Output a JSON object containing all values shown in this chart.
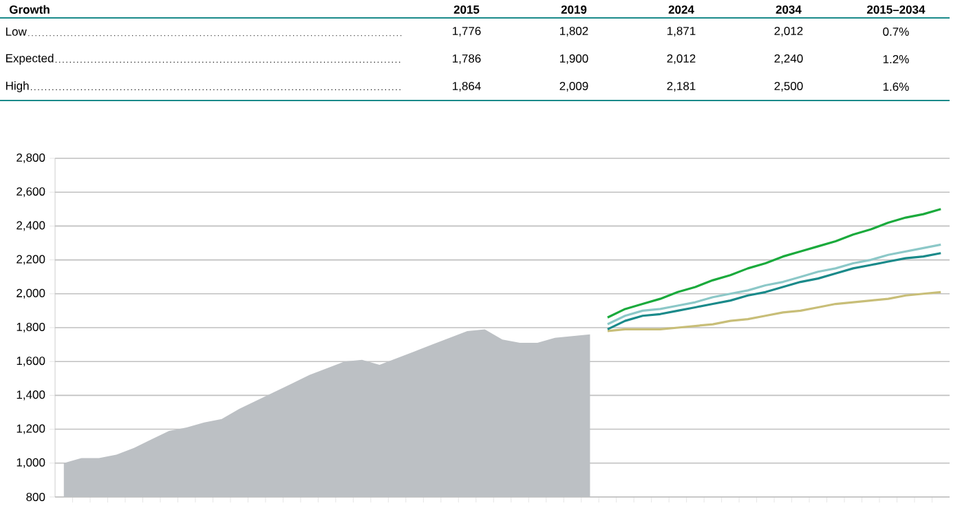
{
  "chart_data": [
    {
      "type": "other",
      "ylabel": "Growth",
      "categories": [
        "2015",
        "2019",
        "2024",
        "2034",
        "2015–2034"
      ],
      "series": [
        {
          "name": "Low",
          "values": [
            1776,
            1802,
            1871,
            2012,
            0.7
          ],
          "value_labels": [
            "1,776",
            "1,802",
            "1,871",
            "2,012",
            "0.7%"
          ]
        },
        {
          "name": "Expected",
          "values": [
            1786,
            1900,
            2012,
            2240,
            1.2
          ],
          "value_labels": [
            "1,786",
            "1,900",
            "2,012",
            "2,240",
            "1.2%"
          ]
        },
        {
          "name": "High",
          "values": [
            1864,
            2009,
            2181,
            2500,
            1.6
          ],
          "value_labels": [
            "1,864",
            "2,009",
            "2,181",
            "2,500",
            "1.6%"
          ]
        }
      ]
    },
    {
      "type": "line",
      "categories": [
        null,
        null,
        null,
        null,
        null,
        null,
        null,
        null,
        null,
        null,
        null,
        null,
        null,
        null,
        null,
        null,
        null,
        null,
        null,
        null,
        null,
        null,
        null,
        null,
        null,
        null,
        null,
        null,
        null,
        null,
        null,
        null,
        null,
        null,
        null,
        null,
        null,
        null,
        null,
        null,
        null,
        null,
        null,
        null,
        null,
        null,
        null,
        null,
        null,
        null,
        null
      ],
      "series": [
        {
          "type": "area",
          "color": "#bcc0c4",
          "values": [
            1000,
            1030,
            1030,
            1050,
            1090,
            1140,
            1190,
            1210,
            1240,
            1260,
            1320,
            1370,
            1420,
            1470,
            1520,
            1560,
            1600,
            1610,
            1580,
            1620,
            1660,
            1700,
            1740,
            1780,
            1790,
            1730,
            1710,
            1710,
            1740,
            1750,
            1760,
            null,
            null,
            null,
            null,
            null,
            null,
            null,
            null,
            null,
            null,
            null,
            null,
            null,
            null,
            null,
            null,
            null,
            null,
            null,
            null
          ]
        },
        {
          "color": "#c8be78",
          "values": [
            null,
            null,
            null,
            null,
            null,
            null,
            null,
            null,
            null,
            null,
            null,
            null,
            null,
            null,
            null,
            null,
            null,
            null,
            null,
            null,
            null,
            null,
            null,
            null,
            null,
            null,
            null,
            null,
            null,
            null,
            null,
            1780,
            1790,
            1790,
            1790,
            1800,
            1810,
            1820,
            1840,
            1850,
            1870,
            1890,
            1900,
            1920,
            1940,
            1950,
            1960,
            1970,
            1990,
            2000,
            2010
          ]
        },
        {
          "color": "#8cc8c8",
          "values": [
            null,
            null,
            null,
            null,
            null,
            null,
            null,
            null,
            null,
            null,
            null,
            null,
            null,
            null,
            null,
            null,
            null,
            null,
            null,
            null,
            null,
            null,
            null,
            null,
            null,
            null,
            null,
            null,
            null,
            null,
            null,
            1820,
            1870,
            1900,
            1910,
            1930,
            1950,
            1980,
            2000,
            2020,
            2050,
            2070,
            2100,
            2130,
            2150,
            2180,
            2200,
            2230,
            2250,
            2270,
            2290
          ]
        },
        {
          "color": "#1a8a8a",
          "values": [
            null,
            null,
            null,
            null,
            null,
            null,
            null,
            null,
            null,
            null,
            null,
            null,
            null,
            null,
            null,
            null,
            null,
            null,
            null,
            null,
            null,
            null,
            null,
            null,
            null,
            null,
            null,
            null,
            null,
            null,
            null,
            1790,
            1840,
            1870,
            1880,
            1900,
            1920,
            1940,
            1960,
            1990,
            2010,
            2040,
            2070,
            2090,
            2120,
            2150,
            2170,
            2190,
            2210,
            2220,
            2240
          ]
        },
        {
          "color": "#1aaa3c",
          "values": [
            null,
            null,
            null,
            null,
            null,
            null,
            null,
            null,
            null,
            null,
            null,
            null,
            null,
            null,
            null,
            null,
            null,
            null,
            null,
            null,
            null,
            null,
            null,
            null,
            null,
            null,
            null,
            null,
            null,
            null,
            null,
            1860,
            1910,
            1940,
            1970,
            2010,
            2040,
            2080,
            2110,
            2150,
            2180,
            2220,
            2250,
            2280,
            2310,
            2350,
            2380,
            2420,
            2450,
            2470,
            2500
          ]
        }
      ],
      "ylim": [
        800,
        2800
      ],
      "yticks": [
        {
          "value": 800,
          "label": "800"
        },
        {
          "value": 1000,
          "label": "1,000"
        },
        {
          "value": 1200,
          "label": "1,200"
        },
        {
          "value": 1400,
          "label": "1,400"
        },
        {
          "value": 1600,
          "label": "1,600"
        },
        {
          "value": 1800,
          "label": "1,800"
        },
        {
          "value": 2000,
          "label": "2,000"
        },
        {
          "value": 2200,
          "label": "2,200"
        },
        {
          "value": 2400,
          "label": "2,400"
        },
        {
          "value": 2600,
          "label": "2,600"
        },
        {
          "value": 2800,
          "label": "2,800"
        }
      ],
      "grid": "y",
      "tick_labels": "y"
    }
  ]
}
